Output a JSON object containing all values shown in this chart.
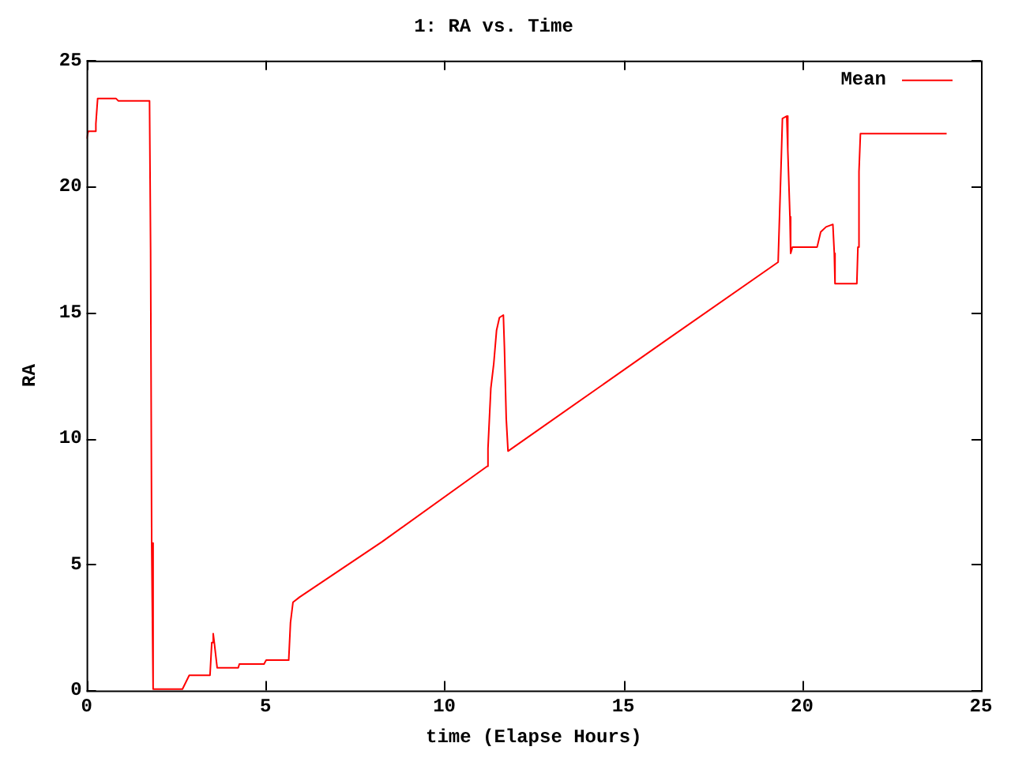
{
  "chart_data": {
    "type": "line",
    "title": "1: RA vs. Time",
    "xlabel": "time (Elapse Hours)",
    "ylabel": "RA",
    "xlim": [
      0,
      25
    ],
    "xticks": [
      0,
      5,
      10,
      15,
      20,
      25
    ],
    "ylim": [
      0,
      25
    ],
    "yticks": [
      0,
      5,
      10,
      15,
      20,
      25
    ],
    "grid": false,
    "legend": "top right",
    "marker": "none",
    "line_style": "solid",
    "series": [
      {
        "name": "Mean",
        "color": "#ff0000",
        "x": [
          0,
          0.05,
          0.25,
          0.26,
          0.31,
          0.82,
          0.89,
          1.76,
          1.79,
          1.82,
          1.86,
          2.68,
          2.87,
          3.45,
          3.5,
          3.54,
          3.57,
          3.65,
          4.24,
          4.27,
          4.96,
          5.02,
          5.65,
          5.7,
          5.77,
          5.95,
          8.26,
          11.2,
          11.22,
          11.3,
          11.38,
          11.46,
          11.54,
          11.65,
          11.68,
          11.73,
          11.78,
          16.2,
          19.33,
          19.36,
          19.42,
          19.45,
          19.57,
          19.6,
          19.66,
          19.68,
          19.73,
          20.42,
          20.52,
          20.67,
          20.86,
          20.9,
          20.92,
          21.53,
          21.56,
          21.59,
          21.63,
          24.04
        ],
        "values": [
          21.9,
          22.2,
          22.2,
          22.5,
          23.5,
          23.5,
          23.4,
          23.4,
          17.5,
          5.85,
          0.05,
          0.05,
          0.6,
          0.6,
          1.9,
          2.25,
          1.9,
          0.9,
          0.9,
          1.05,
          1.05,
          1.2,
          1.2,
          2.7,
          3.5,
          3.7,
          5.9,
          8.9,
          9.6,
          12.0,
          12.95,
          14.3,
          14.8,
          14.9,
          13.6,
          10.8,
          9.5,
          13.9,
          17.0,
          18.4,
          21.2,
          22.7,
          22.8,
          21.45,
          18.8,
          17.35,
          17.6,
          17.6,
          18.2,
          18.4,
          18.5,
          17.35,
          16.15,
          16.15,
          17.6,
          20.6,
          22.1,
          22.1
        ]
      }
    ]
  }
}
